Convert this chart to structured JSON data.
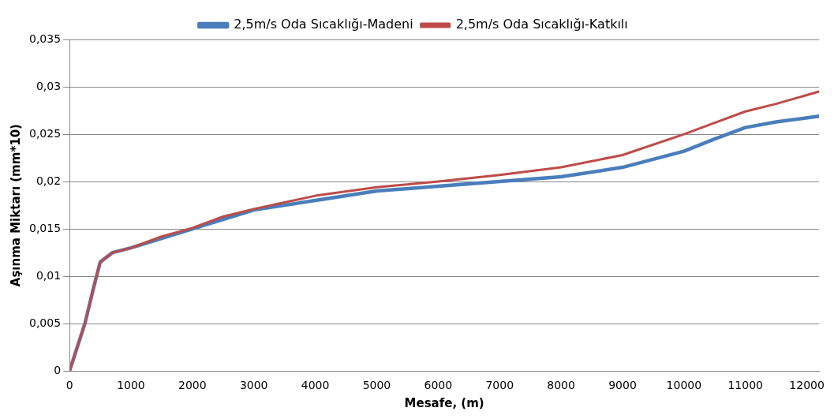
{
  "chart_data": {
    "type": "line",
    "xlabel": "Mesafe, (m)",
    "ylabel": "Aşınma Miktarı (mm*10)",
    "legend": "top",
    "grid": "y",
    "marker": "none",
    "line_style": "solid",
    "xlim": [
      0,
      12200
    ],
    "xticks": [
      0,
      1000,
      2000,
      3000,
      4000,
      5000,
      6000,
      7000,
      8000,
      9000,
      10000,
      11000,
      12000
    ],
    "ylim": [
      0,
      0.035
    ],
    "yticks": [
      0,
      {
        "value": 0.005,
        "label": "0,005"
      },
      {
        "value": 0.01,
        "label": "0,01"
      },
      {
        "value": 0.015,
        "label": "0,015"
      },
      {
        "value": 0.02,
        "label": "0,02"
      },
      {
        "value": 0.025,
        "label": "0,025"
      },
      {
        "value": 0.03,
        "label": "0,03"
      },
      {
        "value": 0.035,
        "label": "0,035"
      }
    ],
    "series": [
      {
        "name": "2,5m/s Oda Sıcaklığı-Madeni",
        "color": "#4a7ebb",
        "x": [
          0,
          100,
          250,
          400,
          500,
          700,
          1000,
          1500,
          2000,
          2500,
          3000,
          4000,
          5000,
          6000,
          7000,
          8000,
          9000,
          10000,
          10500,
          11000,
          11500,
          12200
        ],
        "values": [
          0,
          0.002,
          0.005,
          0.009,
          0.0115,
          0.0125,
          0.013,
          0.014,
          0.015,
          0.016,
          0.017,
          0.018,
          0.019,
          0.0195,
          0.02,
          0.0205,
          0.0215,
          0.0232,
          0.0245,
          0.0257,
          0.0263,
          0.0269
        ]
      },
      {
        "name": "2,5m/s Oda Sıcaklığı-Katkılı",
        "color": "#be4b48",
        "x": [
          0,
          100,
          250,
          400,
          500,
          700,
          1000,
          1500,
          2000,
          2500,
          3000,
          4000,
          5000,
          6000,
          7000,
          8000,
          9000,
          10000,
          10500,
          11000,
          11500,
          12200
        ],
        "values": [
          0,
          0.002,
          0.005,
          0.009,
          0.0115,
          0.0125,
          0.013,
          0.0142,
          0.0151,
          0.0163,
          0.0171,
          0.0185,
          0.0194,
          0.02,
          0.0207,
          0.0215,
          0.0228,
          0.025,
          0.0262,
          0.0274,
          0.0282,
          0.0295
        ]
      }
    ]
  }
}
